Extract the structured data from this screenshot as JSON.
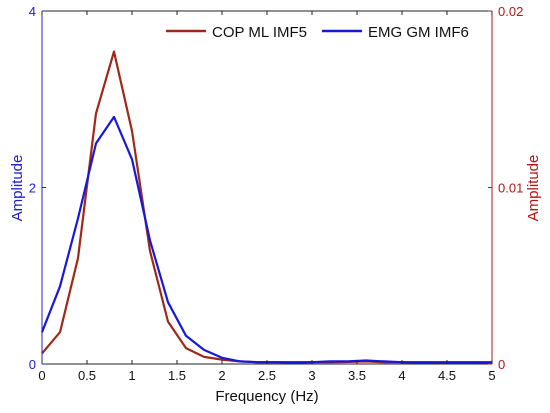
{
  "chart_data": {
    "type": "line",
    "xlabel": "Frequency (Hz)",
    "ylabel_left": "Amplitude",
    "ylabel_right": "Amplitude",
    "xlim": [
      0,
      5
    ],
    "ylim_left": [
      0,
      4
    ],
    "ylim_right": [
      0,
      0.02
    ],
    "x_ticks": [
      "0",
      "0.5",
      "1",
      "1.5",
      "2",
      "2.5",
      "3",
      "3.5",
      "4",
      "4.5",
      "5"
    ],
    "y_left_ticks": [
      "0",
      "2",
      "4"
    ],
    "y_right_ticks": [
      "0",
      "0.01",
      "0.02"
    ],
    "grid": false,
    "legend_position": "top-right",
    "colors": {
      "left_axis": "#2020c8",
      "right_axis": "#b01818",
      "plot_bg": "#ffffff"
    },
    "series": [
      {
        "name": "COP ML IMF5",
        "axis": "right",
        "color": "#a02818",
        "x": [
          0,
          0.2,
          0.4,
          0.6,
          0.8,
          1.0,
          1.2,
          1.4,
          1.6,
          1.8,
          2.0,
          2.2,
          2.4,
          2.6,
          2.8,
          3.0,
          3.2,
          3.4,
          3.6,
          3.8,
          4.0,
          4.2,
          4.4,
          4.6,
          4.8,
          5.0
        ],
        "values": [
          0.0006,
          0.0018,
          0.006,
          0.0142,
          0.0177,
          0.0132,
          0.0064,
          0.0024,
          0.0009,
          0.0004,
          0.00025,
          0.00015,
          0.0001,
          0.0001,
          8e-05,
          0.0001,
          0.0001,
          0.00012,
          0.00015,
          0.0001,
          0.0001,
          8e-05,
          8e-05,
          8e-05,
          8e-05,
          8e-05
        ]
      },
      {
        "name": "EMG GM IMF6",
        "axis": "left",
        "color": "#1818d8",
        "x": [
          0,
          0.2,
          0.4,
          0.6,
          0.8,
          1.0,
          1.2,
          1.4,
          1.6,
          1.8,
          2.0,
          2.2,
          2.4,
          2.6,
          2.8,
          3.0,
          3.2,
          3.4,
          3.6,
          3.8,
          4.0,
          4.2,
          4.4,
          4.6,
          4.8,
          5.0
        ],
        "values": [
          0.36,
          0.88,
          1.65,
          2.5,
          2.8,
          2.32,
          1.4,
          0.7,
          0.32,
          0.16,
          0.07,
          0.03,
          0.02,
          0.02,
          0.02,
          0.02,
          0.03,
          0.03,
          0.04,
          0.03,
          0.02,
          0.02,
          0.02,
          0.02,
          0.02,
          0.02
        ]
      }
    ]
  }
}
